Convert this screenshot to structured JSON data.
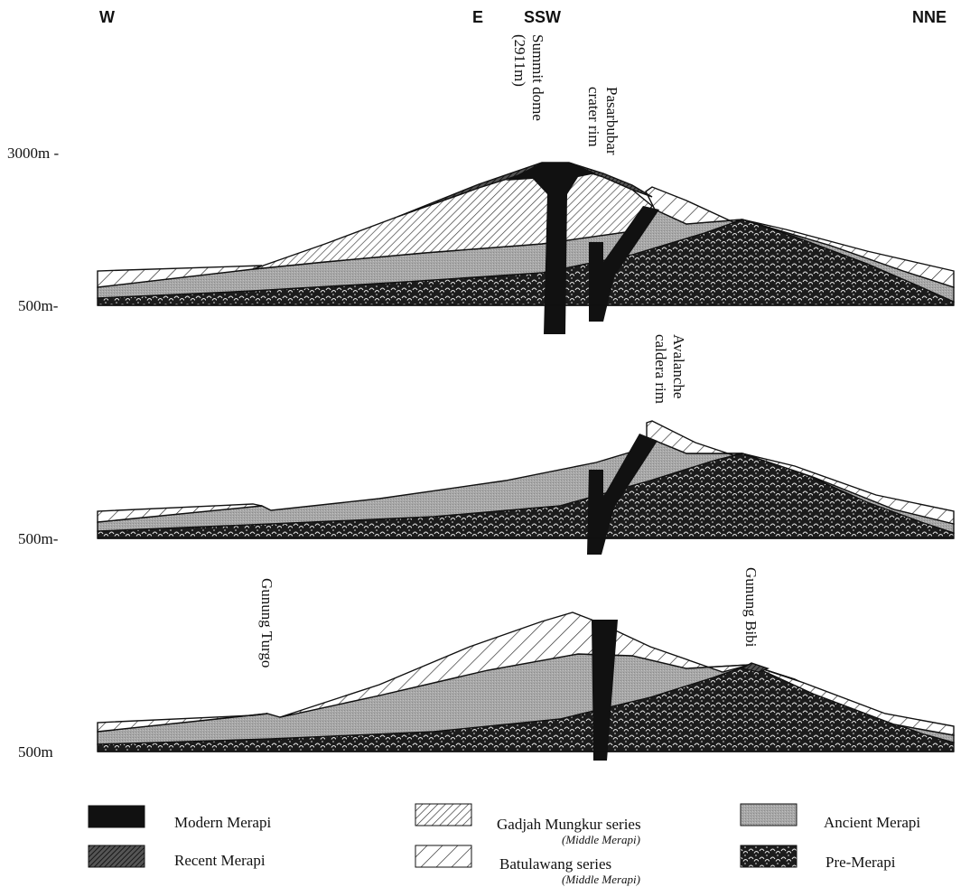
{
  "directions": {
    "w": "W",
    "e": "E",
    "ssw": "SSW",
    "nne": "NNE"
  },
  "elevations": {
    "top_3000": "3000m -",
    "top_500": "500m-",
    "middle_500": "500m-",
    "bottom_500": "500m"
  },
  "labels": {
    "summit_line1": "Summit dome",
    "summit_line2": "(2911m)",
    "pasarbubar_line1": "Pasarbubar",
    "pasarbubar_line2": "crater rim",
    "avalanche_line1": "Avalanche",
    "avalanche_line2": "caldera rim",
    "gunung_turgo": "Gunung Turgo",
    "gunung_bibi": "Gunung Bibi"
  },
  "legend": {
    "modern": "Modern Merapi",
    "recent": "Recent Merapi",
    "gadjah": "Gadjah Mungkur series",
    "gadjah_sub": "(Middle Merapi)",
    "batulawang": "Batulawang series",
    "batulawang_sub": "(Middle Merapi)",
    "ancient": "Ancient Merapi",
    "pre": "Pre-Merapi"
  },
  "colors": {
    "modern": "#111111",
    "ancient": "#a9a9a9",
    "pre": "#1e1e1e",
    "hatch": "#333333"
  }
}
